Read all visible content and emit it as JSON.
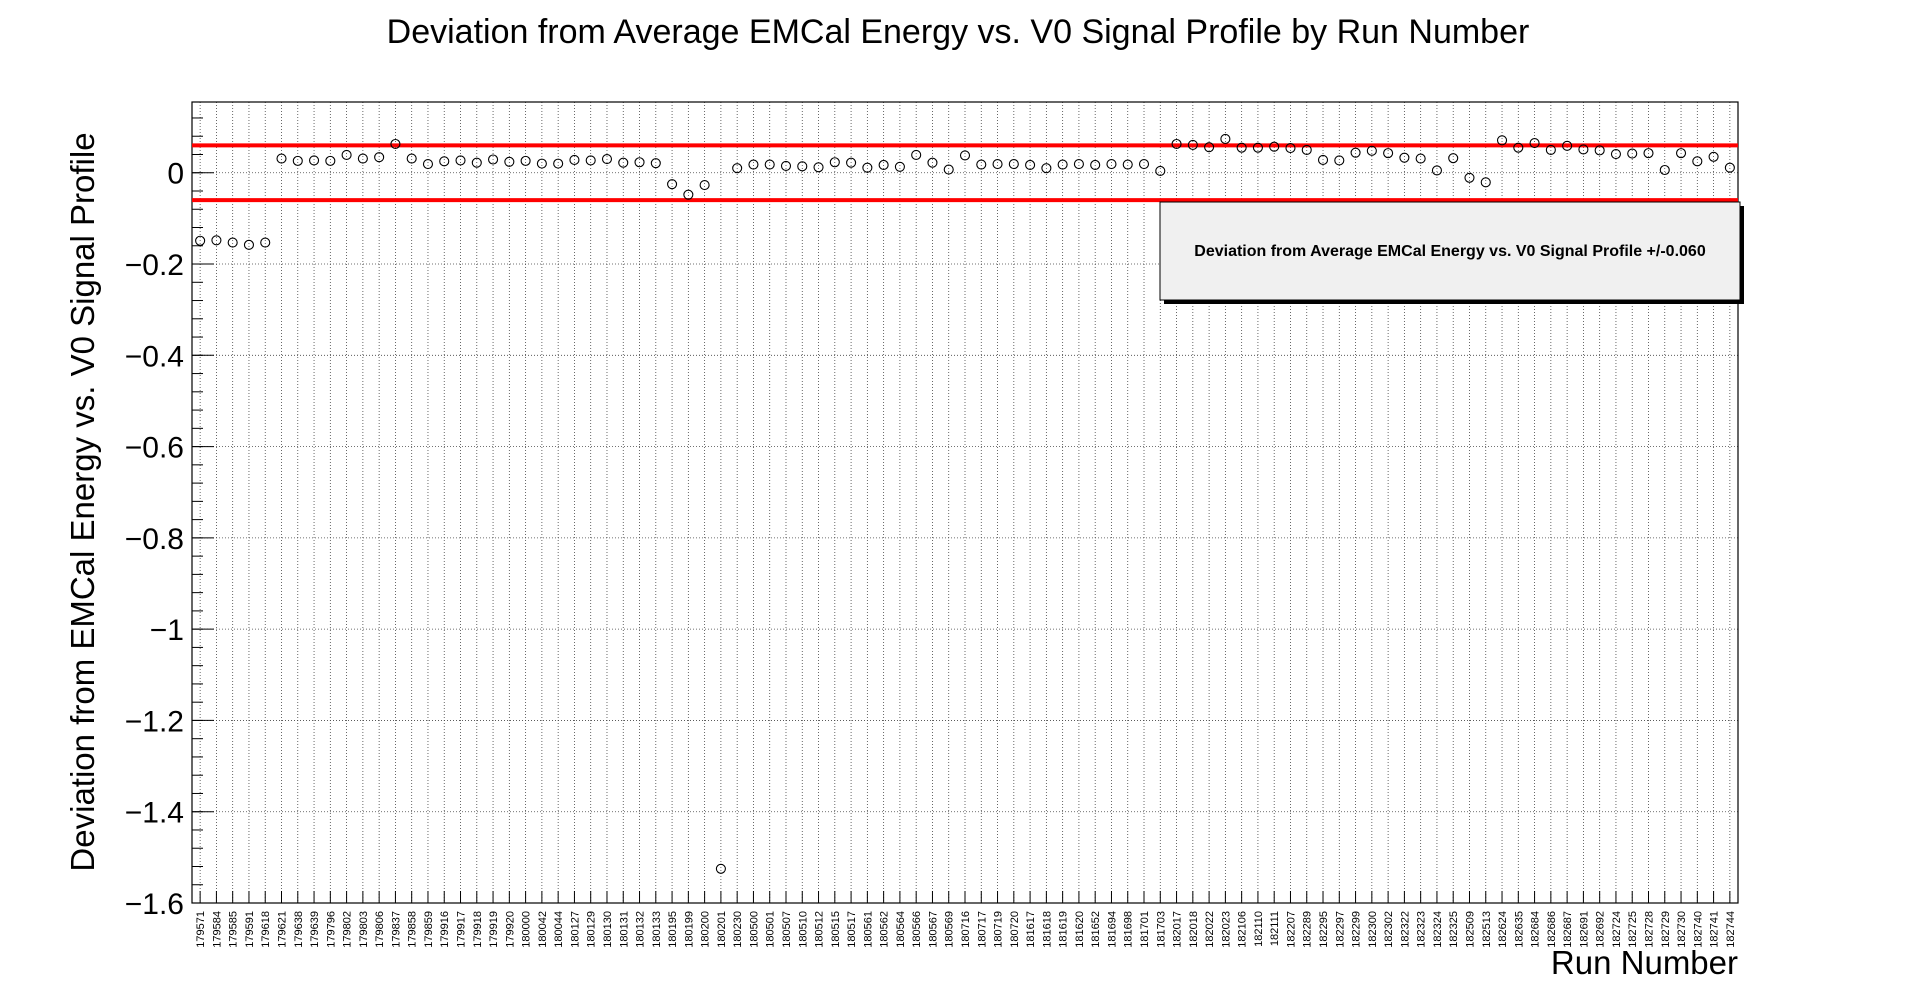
{
  "chart_data": {
    "type": "scatter",
    "title": "Deviation from Average EMCal Energy vs. V0 Signal Profile by Run Number",
    "xlabel": "Run Number",
    "ylabel": "Deviation from EMCal Energy vs. V0 Signal Profile",
    "ylim": [
      -1.6,
      0.155
    ],
    "yticks": [
      0,
      -0.2,
      -0.4,
      -0.6,
      -0.8,
      -1,
      -1.2,
      -1.4,
      -1.6
    ],
    "ytick_labels": [
      "0",
      "−0.2",
      "−0.4",
      "−0.6",
      "−0.8",
      "−1",
      "−1.2",
      "−1.4",
      "−1.6"
    ],
    "grid": true,
    "marker": "open-circle",
    "categories": [
      "179571",
      "179584",
      "179585",
      "179591",
      "179618",
      "179621",
      "179638",
      "179639",
      "179796",
      "179802",
      "179803",
      "179806",
      "179837",
      "179858",
      "179859",
      "179916",
      "179917",
      "179918",
      "179919",
      "179920",
      "180000",
      "180042",
      "180044",
      "180127",
      "180129",
      "180130",
      "180131",
      "180132",
      "180133",
      "180195",
      "180199",
      "180200",
      "180201",
      "180230",
      "180500",
      "180501",
      "180507",
      "180510",
      "180512",
      "180515",
      "180517",
      "180561",
      "180562",
      "180564",
      "180566",
      "180567",
      "180569",
      "180716",
      "180717",
      "180719",
      "180720",
      "181617",
      "181618",
      "181619",
      "181620",
      "181652",
      "181694",
      "181698",
      "181701",
      "181703",
      "182017",
      "182018",
      "182022",
      "182023",
      "182106",
      "182110",
      "182111",
      "182207",
      "182289",
      "182295",
      "182297",
      "182299",
      "182300",
      "182302",
      "182322",
      "182323",
      "182324",
      "182325",
      "182509",
      "182513",
      "182624",
      "182635",
      "182684",
      "182686",
      "182687",
      "182691",
      "182692",
      "182724",
      "182725",
      "182728",
      "182729",
      "182730",
      "182740",
      "182741",
      "182744"
    ],
    "values": [
      -0.149,
      -0.148,
      -0.153,
      -0.158,
      -0.153,
      0.031,
      0.026,
      0.027,
      0.026,
      0.039,
      0.031,
      0.034,
      0.063,
      0.031,
      0.019,
      0.025,
      0.027,
      0.022,
      0.029,
      0.024,
      0.026,
      0.02,
      0.02,
      0.028,
      0.027,
      0.03,
      0.022,
      0.023,
      0.021,
      -0.025,
      -0.048,
      -0.027,
      -1.525,
      0.01,
      0.018,
      0.018,
      0.015,
      0.014,
      0.012,
      0.023,
      0.022,
      0.011,
      0.017,
      0.013,
      0.039,
      0.022,
      0.007,
      0.038,
      0.018,
      0.019,
      0.019,
      0.017,
      0.01,
      0.018,
      0.019,
      0.017,
      0.019,
      0.018,
      0.019,
      0.004,
      0.063,
      0.061,
      0.056,
      0.074,
      0.055,
      0.055,
      0.057,
      0.054,
      0.05,
      0.028,
      0.027,
      0.044,
      0.048,
      0.043,
      0.033,
      0.031,
      0.005,
      0.032,
      -0.011,
      -0.021,
      0.071,
      0.055,
      0.065,
      0.05,
      0.059,
      0.051,
      0.049,
      0.041,
      0.042,
      0.043,
      0.006,
      0.043,
      0.025,
      0.035,
      0.011
    ],
    "threshold_lines": [
      0.06,
      -0.06
    ],
    "threshold_color": "#ff0000",
    "legend": {
      "text": "Deviation from Average EMCal Energy vs. V0 Signal Profile +/-0.060",
      "position": "top-right",
      "background": "#f0f0f0"
    }
  }
}
